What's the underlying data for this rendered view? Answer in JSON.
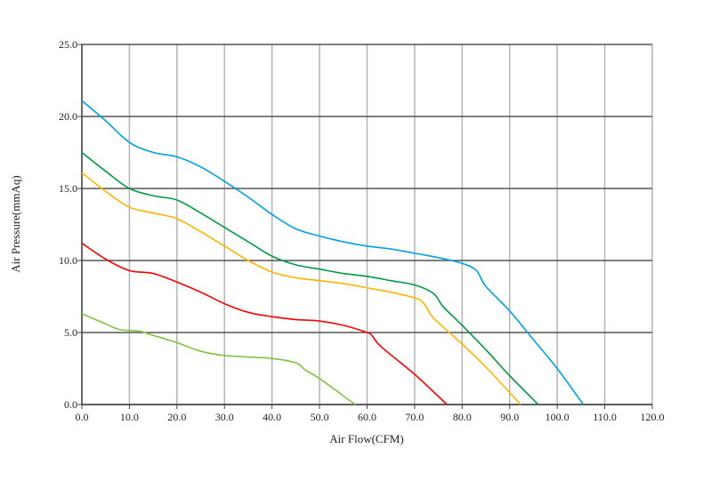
{
  "chart_data": {
    "type": "line",
    "title": "",
    "xlabel": "Air Flow(CFM)",
    "ylabel": "Air Pressure(mmAq)",
    "xlim": [
      0,
      120
    ],
    "ylim": [
      0,
      25
    ],
    "xticks": [
      "0.0",
      "10.0",
      "20.0",
      "30.0",
      "40.0",
      "50.0",
      "60.0",
      "70.0",
      "80.0",
      "90.0",
      "100.0",
      "110.0",
      "120.0"
    ],
    "yticks": [
      "0.0",
      "5.0",
      "10.0",
      "15.0",
      "20.0",
      "25.0"
    ],
    "grid": true,
    "legend": "none",
    "series": [
      {
        "color": "#00a0e9",
        "points": [
          [
            0,
            21.1
          ],
          [
            5,
            19.7
          ],
          [
            10,
            18.2
          ],
          [
            15,
            17.5
          ],
          [
            20,
            17.2
          ],
          [
            25,
            16.5
          ],
          [
            30,
            15.5
          ],
          [
            35,
            14.4
          ],
          [
            40,
            13.2
          ],
          [
            45,
            12.2
          ],
          [
            50,
            11.7
          ],
          [
            55,
            11.3
          ],
          [
            60,
            11.0
          ],
          [
            65,
            10.8
          ],
          [
            70,
            10.5
          ],
          [
            75,
            10.2
          ],
          [
            80,
            9.8
          ],
          [
            83,
            9.3
          ],
          [
            85,
            8.2
          ],
          [
            90,
            6.5
          ],
          [
            95,
            4.5
          ],
          [
            100,
            2.5
          ],
          [
            105.5,
            0
          ]
        ]
      },
      {
        "color": "#009944",
        "points": [
          [
            0,
            17.5
          ],
          [
            5,
            16.2
          ],
          [
            10,
            15.0
          ],
          [
            15,
            14.5
          ],
          [
            20,
            14.2
          ],
          [
            25,
            13.3
          ],
          [
            30,
            12.3
          ],
          [
            35,
            11.3
          ],
          [
            40,
            10.3
          ],
          [
            45,
            9.7
          ],
          [
            50,
            9.4
          ],
          [
            55,
            9.1
          ],
          [
            60,
            8.9
          ],
          [
            65,
            8.6
          ],
          [
            70,
            8.3
          ],
          [
            74,
            7.7
          ],
          [
            76,
            6.8
          ],
          [
            80,
            5.5
          ],
          [
            85,
            3.8
          ],
          [
            90,
            2.0
          ],
          [
            96,
            0
          ]
        ]
      },
      {
        "color": "#ffb400",
        "points": [
          [
            0,
            16.1
          ],
          [
            5,
            14.8
          ],
          [
            10,
            13.7
          ],
          [
            15,
            13.3
          ],
          [
            20,
            12.9
          ],
          [
            25,
            12.0
          ],
          [
            30,
            11.0
          ],
          [
            35,
            10.0
          ],
          [
            40,
            9.2
          ],
          [
            45,
            8.8
          ],
          [
            50,
            8.6
          ],
          [
            55,
            8.4
          ],
          [
            60,
            8.1
          ],
          [
            65,
            7.8
          ],
          [
            70,
            7.4
          ],
          [
            72,
            7.0
          ],
          [
            74,
            6.0
          ],
          [
            80,
            4.2
          ],
          [
            85,
            2.6
          ],
          [
            92.3,
            0
          ]
        ]
      },
      {
        "color": "#ff0000",
        "points": [
          [
            0,
            11.2
          ],
          [
            5,
            10.1
          ],
          [
            10,
            9.3
          ],
          [
            15,
            9.1
          ],
          [
            20,
            8.5
          ],
          [
            25,
            7.8
          ],
          [
            30,
            7.0
          ],
          [
            35,
            6.4
          ],
          [
            40,
            6.1
          ],
          [
            45,
            5.9
          ],
          [
            50,
            5.8
          ],
          [
            55,
            5.5
          ],
          [
            60,
            5.0
          ],
          [
            61,
            4.8
          ],
          [
            63,
            4.0
          ],
          [
            70,
            2.1
          ],
          [
            76.8,
            0
          ]
        ]
      },
      {
        "color": "#80c341",
        "points": [
          [
            0,
            6.3
          ],
          [
            5,
            5.6
          ],
          [
            8,
            5.2
          ],
          [
            12,
            5.1
          ],
          [
            15,
            4.8
          ],
          [
            20,
            4.3
          ],
          [
            25,
            3.7
          ],
          [
            30,
            3.4
          ],
          [
            35,
            3.3
          ],
          [
            40,
            3.2
          ],
          [
            45,
            2.9
          ],
          [
            47,
            2.4
          ],
          [
            50,
            1.8
          ],
          [
            57.5,
            0
          ]
        ]
      }
    ]
  }
}
